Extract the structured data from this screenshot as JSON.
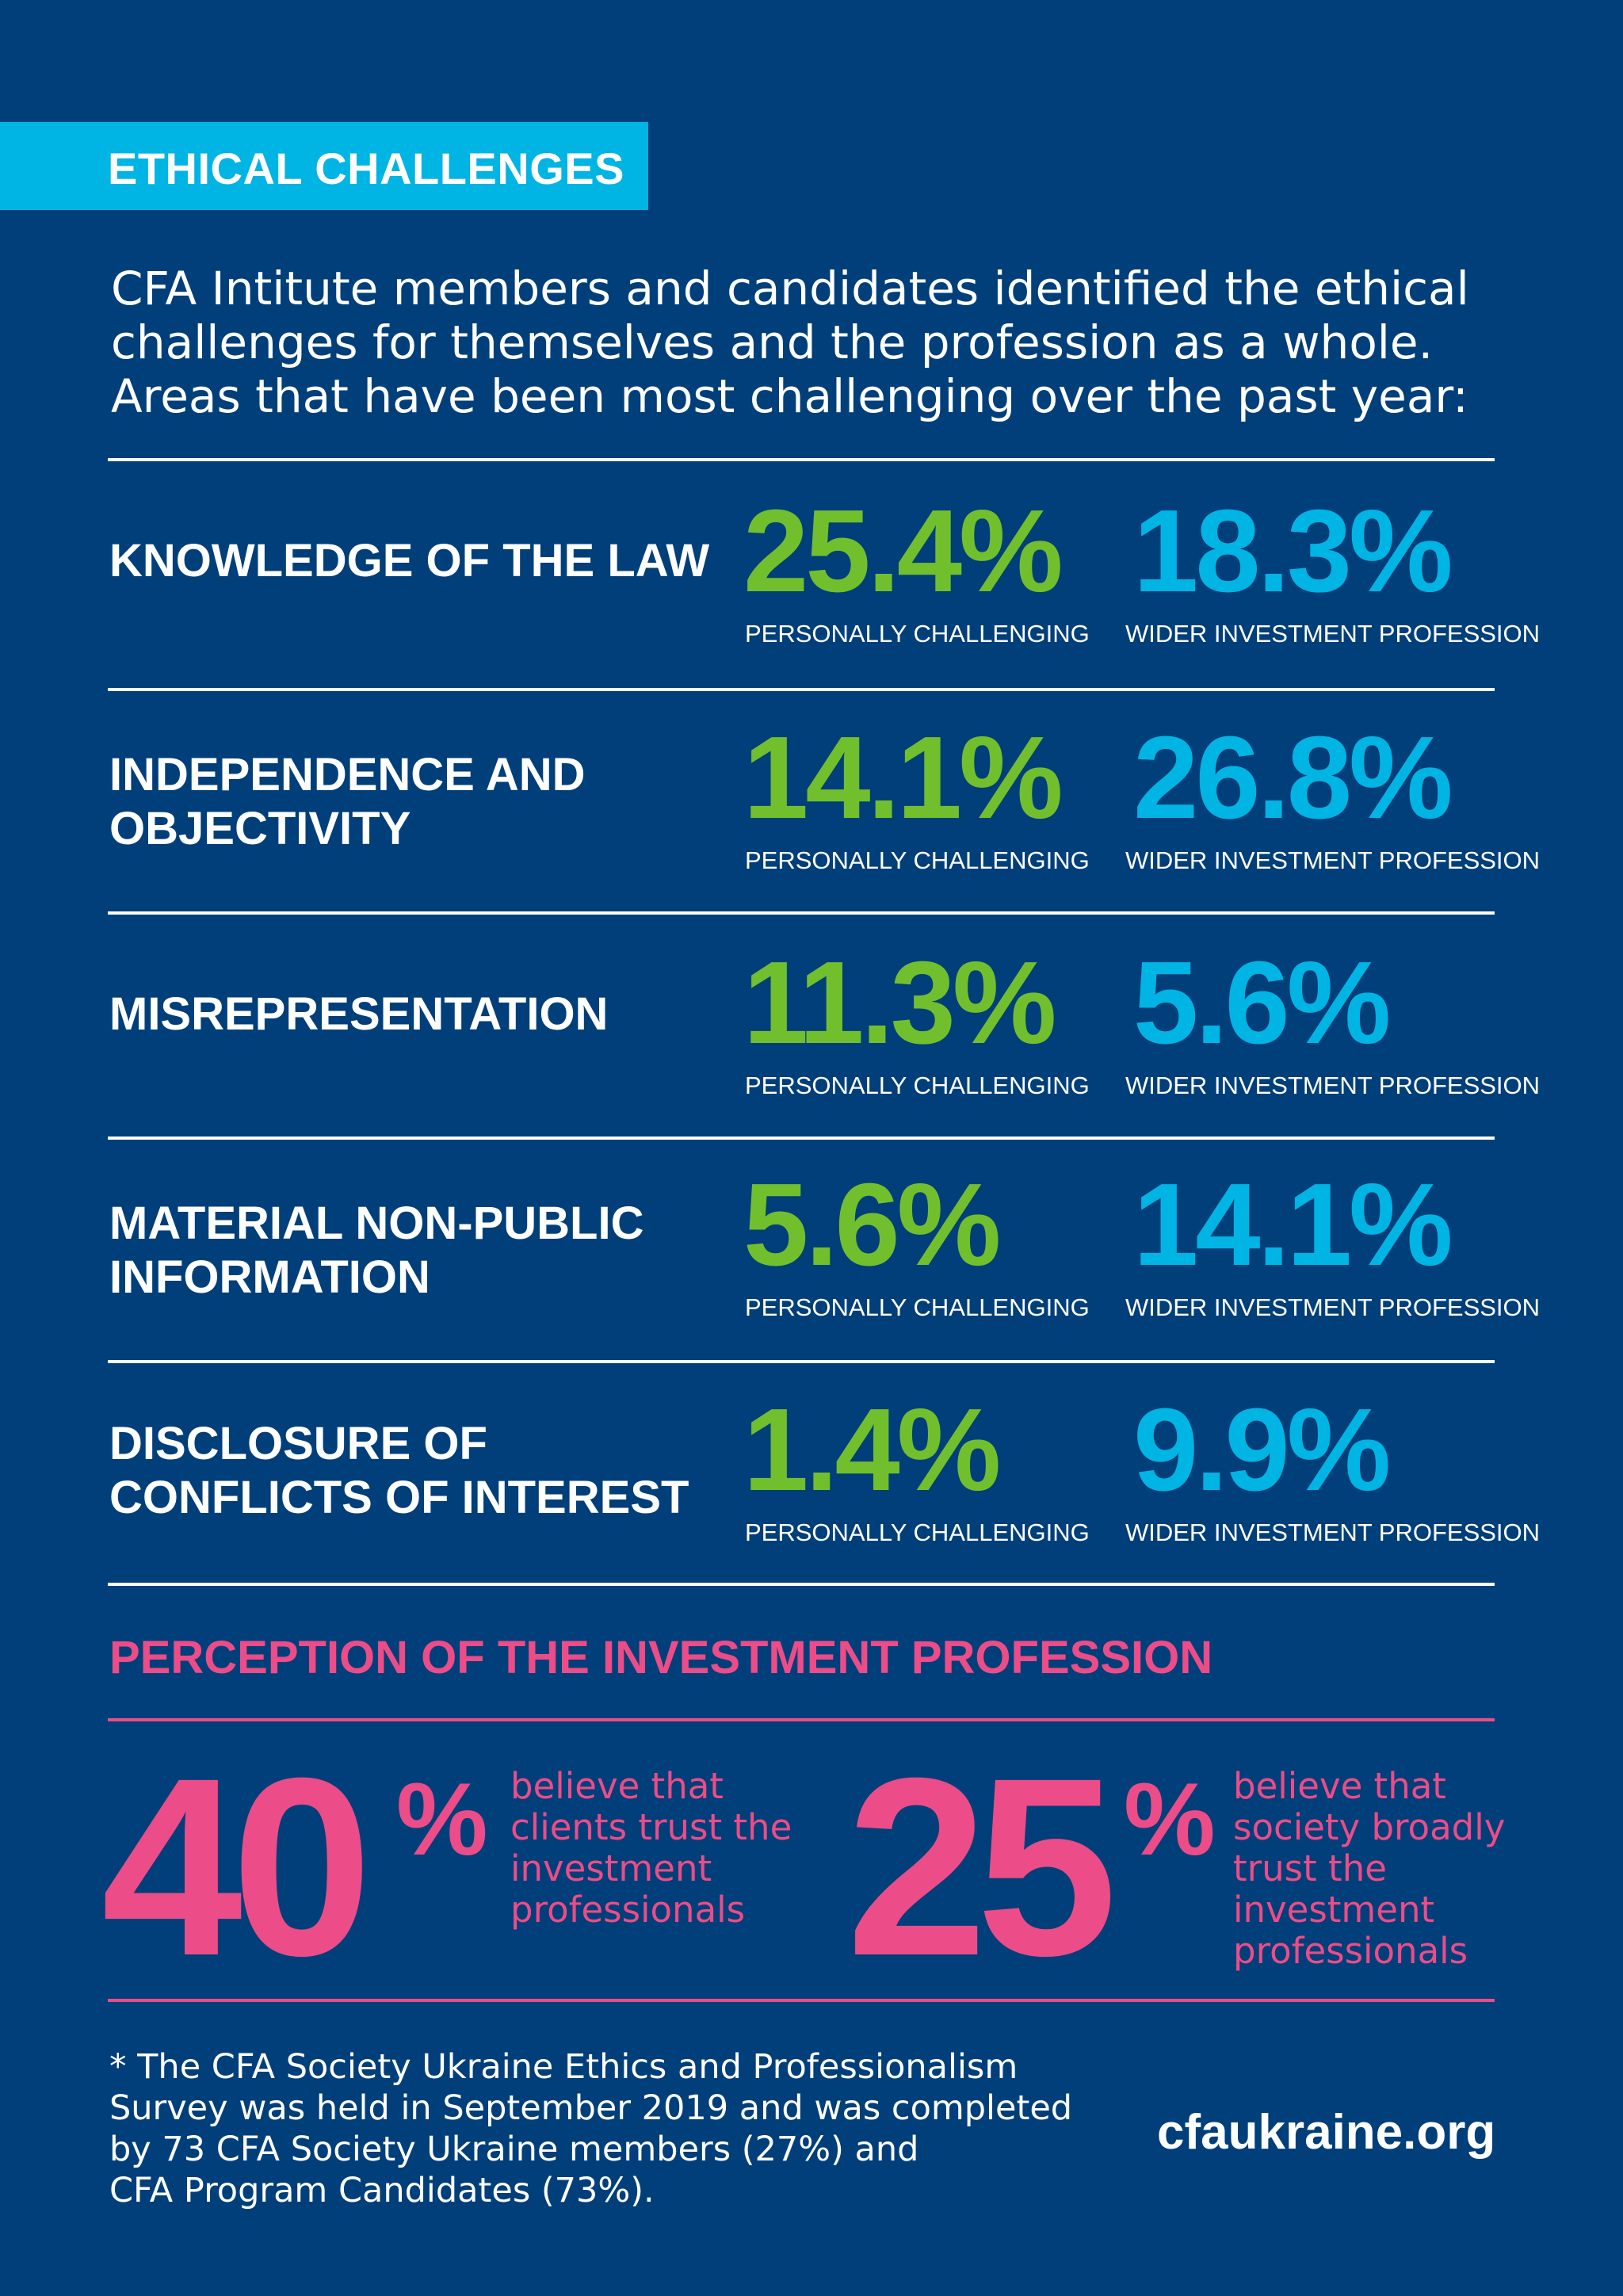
{
  "header": {
    "title": "ETHICAL CHALLENGES"
  },
  "intro": {
    "lines": [
      "CFA Intitute members and candidates identified the ethical",
      "challenges for themselves and the profession as a whole.",
      "Areas that have been most challenging over the past year:"
    ]
  },
  "challenges": [
    {
      "label_lines": [
        "KNOWLEDGE OF THE LAW"
      ],
      "personal": "25.4%",
      "personal_label": "PERSONALLY CHALLENGING",
      "wider": "18.3%",
      "wider_label": "WIDER INVESTMENT PROFESSION"
    },
    {
      "label_lines": [
        "INDEPENDENCE AND",
        "OBJECTIVITY"
      ],
      "personal": "14.1%",
      "personal_label": "PERSONALLY CHALLENGING",
      "wider": "26.8%",
      "wider_label": "WIDER INVESTMENT PROFESSION"
    },
    {
      "label_lines": [
        "MISREPRESENTATION"
      ],
      "personal": "11.3%",
      "personal_label": "PERSONALLY CHALLENGING",
      "wider": "5.6%",
      "wider_label": "WIDER INVESTMENT PROFESSION"
    },
    {
      "label_lines": [
        "MATERIAL NON-PUBLIC",
        "INFORMATION"
      ],
      "personal": "5.6%",
      "personal_label": "PERSONALLY CHALLENGING",
      "wider": "14.1%",
      "wider_label": "WIDER INVESTMENT PROFESSION"
    },
    {
      "label_lines": [
        "DISCLOSURE OF",
        "CONFLICTS OF INTEREST"
      ],
      "personal": "1.4%",
      "personal_label": "PERSONALLY CHALLENGING",
      "wider": "9.9%",
      "wider_label": "WIDER INVESTMENT PROFESSION"
    }
  ],
  "perception": {
    "title": "PERCEPTION OF THE INVESTMENT PROFESSION",
    "stats": [
      {
        "value": "40",
        "sign": "%",
        "text_lines": [
          "believe that",
          "clients trust the",
          "investment",
          "professionals"
        ]
      },
      {
        "value": "25",
        "sign": "%",
        "text_lines": [
          "believe that",
          "society broadly",
          "trust the",
          "investment",
          "professionals"
        ]
      }
    ]
  },
  "footnote": {
    "lines": [
      "* The CFA Society Ukraine Ethics and Professionalism",
      "Survey was held in September 2019 and was completed",
      "by 73 CFA Society Ukraine members (27%) and",
      "CFA Program Candidates (73%)."
    ]
  },
  "site": "cfaukraine.org",
  "colors": {
    "background": "#003f7a",
    "banner": "#00b4e4",
    "green": "#72bf2d",
    "blue": "#00b4e4",
    "pink": "#ec4c87"
  }
}
